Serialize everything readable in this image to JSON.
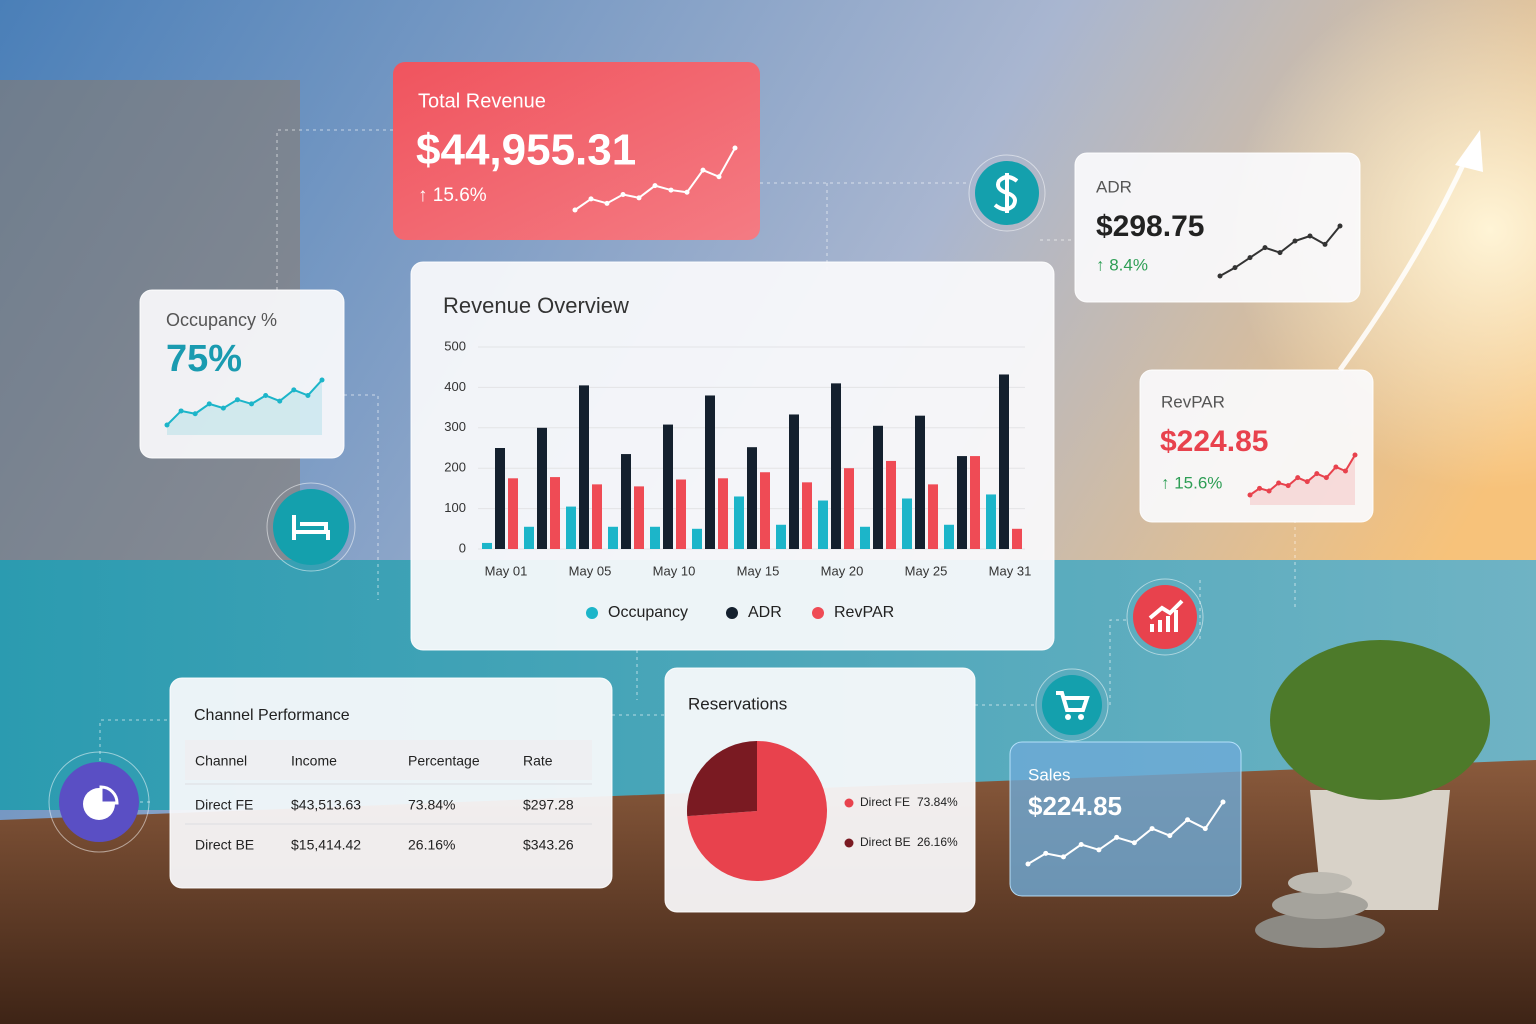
{
  "total_revenue": {
    "title": "Total Revenue",
    "value": "$44,955.31",
    "change": "↑ 15.6%",
    "trend": [
      2,
      3,
      2.6,
      3.4,
      3.1,
      4.2,
      3.8,
      3.6,
      5.6,
      5,
      7.6
    ]
  },
  "adr": {
    "title": "ADR",
    "value": "$298.75",
    "change": "↑ 8.4%",
    "trend": [
      1,
      2,
      3.2,
      4.4,
      3.8,
      5.2,
      5.8,
      4.8,
      7
    ]
  },
  "occupancy": {
    "title": "Occupancy %",
    "value": "75%",
    "trend": [
      1,
      3,
      2.6,
      4,
      3.4,
      4.6,
      4,
      5.2,
      4.4,
      6,
      5.2,
      7.4
    ]
  },
  "revpar": {
    "title": "RevPAR",
    "value": "$224.85",
    "change": "↑ 15.6%",
    "trend": [
      1,
      2,
      1.6,
      2.8,
      2.4,
      3.6,
      3,
      4.2,
      3.6,
      5.2,
      4.6,
      7
    ]
  },
  "sales": {
    "title": "Sales",
    "value": "$224.85",
    "trend": [
      1,
      2.2,
      1.8,
      3.2,
      2.6,
      4,
      3.4,
      5,
      4.2,
      6,
      5,
      8
    ]
  },
  "chart_data": [
    {
      "type": "bar",
      "title": "Revenue Overview",
      "categories": [
        "May 01",
        null,
        "May 05",
        null,
        "May 10",
        null,
        "May 15",
        null,
        "May 20",
        null,
        "May 25",
        null,
        "May 31"
      ],
      "series": [
        {
          "name": "Occupancy",
          "color": "#1cb5c9",
          "values": [
            15,
            55,
            105,
            55,
            55,
            50,
            130,
            60,
            120,
            55,
            125,
            60,
            135
          ]
        },
        {
          "name": "ADR",
          "color": "#14202e",
          "values": [
            250,
            300,
            405,
            235,
            308,
            380,
            252,
            333,
            410,
            305,
            330,
            230,
            432
          ]
        },
        {
          "name": "RevPAR",
          "color": "#ef4b55",
          "values": [
            175,
            178,
            160,
            155,
            172,
            175,
            190,
            165,
            200,
            218,
            160,
            230,
            50
          ]
        }
      ],
      "ylim": [
        0,
        500
      ],
      "yticks": [
        0,
        100,
        200,
        300,
        400,
        500
      ],
      "grid": true
    },
    {
      "type": "pie",
      "title": "Reservations",
      "categories": [
        "Direct FE",
        "Direct BE"
      ],
      "values": [
        73.84,
        26.16
      ],
      "value_labels": [
        "73.84%",
        "26.16%"
      ],
      "colors": [
        "#e8424d",
        "#7a1a22"
      ]
    }
  ],
  "channel_performance": {
    "title": "Channel Performance",
    "columns": [
      "Channel",
      "Income",
      "Percentage",
      "Rate"
    ],
    "rows": [
      [
        "Direct FE",
        "$43,513.63",
        "73.84%",
        "$297.28"
      ],
      [
        "Direct BE",
        "$15,414.42",
        "26.16%",
        "$343.26"
      ]
    ]
  }
}
